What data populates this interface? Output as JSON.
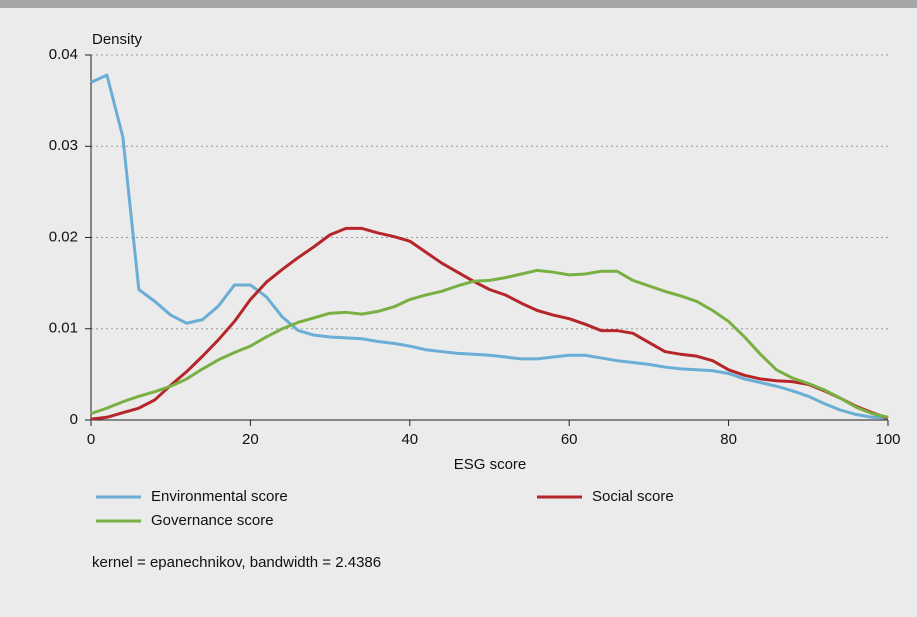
{
  "chart_data": {
    "type": "line",
    "y_label": "Density",
    "x_label": "ESG score",
    "note": "kernel = epanechnikov, bandwidth = 2.4386",
    "x": [
      0,
      2,
      4,
      6,
      8,
      10,
      12,
      14,
      16,
      18,
      20,
      22,
      24,
      26,
      28,
      30,
      32,
      34,
      36,
      38,
      40,
      42,
      44,
      46,
      48,
      50,
      52,
      54,
      56,
      58,
      60,
      62,
      64,
      66,
      68,
      70,
      72,
      74,
      76,
      78,
      80,
      82,
      84,
      86,
      88,
      90,
      92,
      94,
      96,
      98,
      100
    ],
    "series": [
      {
        "name": "Environmental score",
        "color": "#6aaed6",
        "values": [
          0.037,
          0.0378,
          0.031,
          0.0143,
          0.013,
          0.0115,
          0.0106,
          0.011,
          0.0125,
          0.0148,
          0.0148,
          0.0135,
          0.0113,
          0.0098,
          0.0093,
          0.0091,
          0.009,
          0.0089,
          0.0086,
          0.0084,
          0.0081,
          0.0077,
          0.0075,
          0.0073,
          0.0072,
          0.0071,
          0.0069,
          0.0067,
          0.0067,
          0.0069,
          0.0071,
          0.0071,
          0.0068,
          0.0065,
          0.0063,
          0.0061,
          0.0058,
          0.0056,
          0.0055,
          0.0054,
          0.0051,
          0.0045,
          0.0041,
          0.0037,
          0.0032,
          0.0026,
          0.0018,
          0.0011,
          0.0006,
          0.0003,
          0.0002
        ]
      },
      {
        "name": "Social score",
        "color": "#b5262b",
        "values": [
          0.0001,
          0.0003,
          0.0008,
          0.0013,
          0.0022,
          0.0038,
          0.0053,
          0.007,
          0.0088,
          0.0108,
          0.0132,
          0.0151,
          0.0165,
          0.0178,
          0.019,
          0.0203,
          0.021,
          0.021,
          0.0205,
          0.0201,
          0.0196,
          0.0184,
          0.0172,
          0.0162,
          0.0152,
          0.0143,
          0.0137,
          0.0128,
          0.012,
          0.0115,
          0.0111,
          0.0105,
          0.0098,
          0.0098,
          0.0095,
          0.0085,
          0.0075,
          0.0072,
          0.007,
          0.0065,
          0.0055,
          0.0049,
          0.0045,
          0.0043,
          0.0042,
          0.0039,
          0.0032,
          0.0024,
          0.0015,
          0.0008,
          0.0002
        ]
      },
      {
        "name": "Governance score",
        "color": "#78b043",
        "values": [
          0.0007,
          0.0013,
          0.002,
          0.0026,
          0.0031,
          0.0037,
          0.0045,
          0.0056,
          0.0066,
          0.0074,
          0.0081,
          0.0091,
          0.01,
          0.0107,
          0.0112,
          0.0117,
          0.0118,
          0.0116,
          0.0119,
          0.0124,
          0.0132,
          0.0137,
          0.0141,
          0.0147,
          0.0152,
          0.0153,
          0.0156,
          0.016,
          0.0164,
          0.0162,
          0.0159,
          0.016,
          0.0163,
          0.0163,
          0.0153,
          0.0147,
          0.0141,
          0.0136,
          0.013,
          0.012,
          0.0108,
          0.0091,
          0.0072,
          0.0055,
          0.0046,
          0.004,
          0.0033,
          0.0024,
          0.0014,
          0.0007,
          0.0003
        ]
      }
    ],
    "xlim": [
      0,
      100
    ],
    "xticks": [
      0,
      20,
      40,
      60,
      80,
      100
    ],
    "ylim": [
      0,
      0.04
    ],
    "yticks": [
      0,
      0.01,
      0.02,
      0.03,
      0.04
    ],
    "grid": true
  }
}
